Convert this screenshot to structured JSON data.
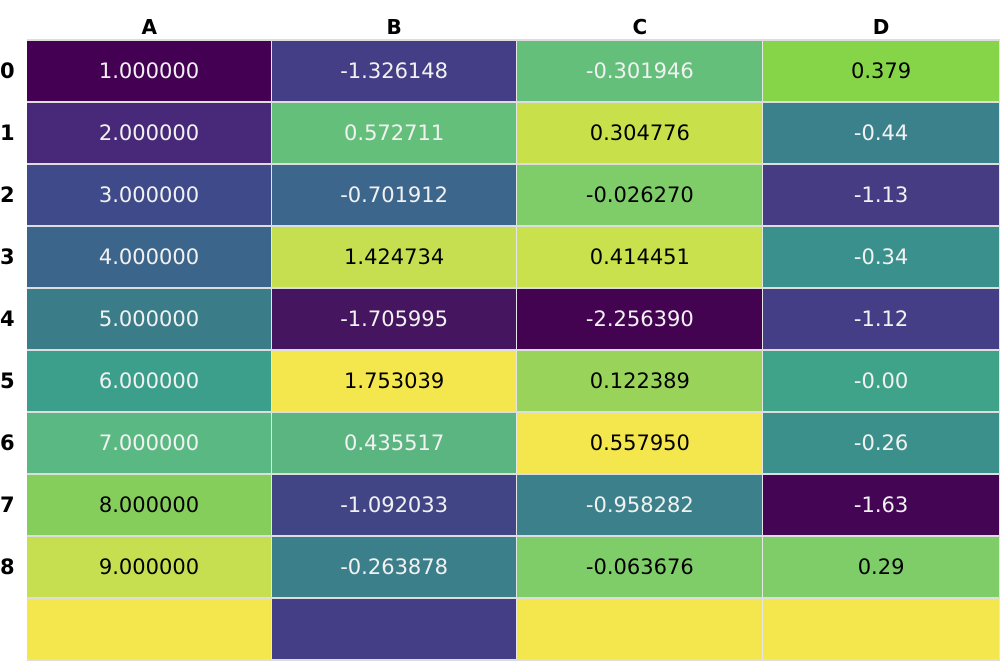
{
  "table": {
    "columns": [
      "A",
      "B",
      "C",
      "D"
    ],
    "rows": [
      {
        "index": "0",
        "cells": [
          {
            "text": "1.000000",
            "bg": "#440154",
            "fg": "#f1f1f1"
          },
          {
            "text": "-1.326148",
            "bg": "#433e85",
            "fg": "#f1f1f1"
          },
          {
            "text": "-0.301946",
            "bg": "#63bf7a",
            "fg": "#f1f1f1"
          },
          {
            "text": "0.379",
            "bg": "#86d549",
            "fg": "#000000"
          }
        ]
      },
      {
        "index": "1",
        "cells": [
          {
            "text": "2.000000",
            "bg": "#482878",
            "fg": "#f1f1f1"
          },
          {
            "text": "0.572711",
            "bg": "#63bf7a",
            "fg": "#f1f1f1"
          },
          {
            "text": "0.304776",
            "bg": "#c8e04a",
            "fg": "#000000"
          },
          {
            "text": "-0.44",
            "bg": "#3b818c",
            "fg": "#f1f1f1"
          }
        ]
      },
      {
        "index": "2",
        "cells": [
          {
            "text": "3.000000",
            "bg": "#3e4a89",
            "fg": "#f1f1f1"
          },
          {
            "text": "-0.701912",
            "bg": "#3d668c",
            "fg": "#f1f1f1"
          },
          {
            "text": "-0.026270",
            "bg": "#7fcd69",
            "fg": "#000000"
          },
          {
            "text": "-1.13",
            "bg": "#463c84",
            "fg": "#f1f1f1"
          }
        ]
      },
      {
        "index": "3",
        "cells": [
          {
            "text": "4.000000",
            "bg": "#3c658b",
            "fg": "#f1f1f1"
          },
          {
            "text": "1.424734",
            "bg": "#c6df50",
            "fg": "#000000"
          },
          {
            "text": "0.414451",
            "bg": "#c9e14c",
            "fg": "#000000"
          },
          {
            "text": "-0.34",
            "bg": "#3a908c",
            "fg": "#f1f1f1"
          }
        ]
      },
      {
        "index": "4",
        "cells": [
          {
            "text": "5.000000",
            "bg": "#3a7d89",
            "fg": "#f1f1f1"
          },
          {
            "text": "-1.705995",
            "bg": "#45155f",
            "fg": "#f1f1f1"
          },
          {
            "text": "-2.256390",
            "bg": "#430351",
            "fg": "#f1f1f1"
          },
          {
            "text": "-1.12",
            "bg": "#433e86",
            "fg": "#f1f1f1"
          }
        ]
      },
      {
        "index": "5",
        "cells": [
          {
            "text": "6.000000",
            "bg": "#3b9f8c",
            "fg": "#f1f1f1"
          },
          {
            "text": "1.753039",
            "bg": "#f4e74e",
            "fg": "#000000"
          },
          {
            "text": "0.122389",
            "bg": "#99d35a",
            "fg": "#000000"
          },
          {
            "text": "-0.00",
            "bg": "#3fa389",
            "fg": "#f1f1f1"
          }
        ]
      },
      {
        "index": "6",
        "cells": [
          {
            "text": "7.000000",
            "bg": "#5ab983",
            "fg": "#f1f1f1"
          },
          {
            "text": "0.435517",
            "bg": "#5ab581",
            "fg": "#f1f1f1"
          },
          {
            "text": "0.557950",
            "bg": "#f4e74e",
            "fg": "#000000"
          },
          {
            "text": "-0.26",
            "bg": "#3b908c",
            "fg": "#f1f1f1"
          }
        ]
      },
      {
        "index": "7",
        "cells": [
          {
            "text": "8.000000",
            "bg": "#86ce5c",
            "fg": "#000000"
          },
          {
            "text": "-1.092033",
            "bg": "#424585",
            "fg": "#f1f1f1"
          },
          {
            "text": "-0.958282",
            "bg": "#3b808a",
            "fg": "#f1f1f1"
          },
          {
            "text": "-1.63",
            "bg": "#440654",
            "fg": "#f1f1f1"
          }
        ]
      },
      {
        "index": "8",
        "cells": [
          {
            "text": "9.000000",
            "bg": "#c6df50",
            "fg": "#000000"
          },
          {
            "text": "-0.263878",
            "bg": "#3b7f8b",
            "fg": "#f1f1f1"
          },
          {
            "text": "-0.063676",
            "bg": "#7fcd69",
            "fg": "#000000"
          },
          {
            "text": "0.29",
            "bg": "#7fcd69",
            "fg": "#000000"
          }
        ]
      },
      {
        "index": "",
        "cells": [
          {
            "text": "",
            "bg": "#f4e74e",
            "fg": "#000000"
          },
          {
            "text": "",
            "bg": "#433e85",
            "fg": "#f1f1f1"
          },
          {
            "text": "",
            "bg": "#f4e74e",
            "fg": "#000000"
          },
          {
            "text": "",
            "bg": "#f4e74e",
            "fg": "#000000"
          }
        ]
      }
    ]
  }
}
